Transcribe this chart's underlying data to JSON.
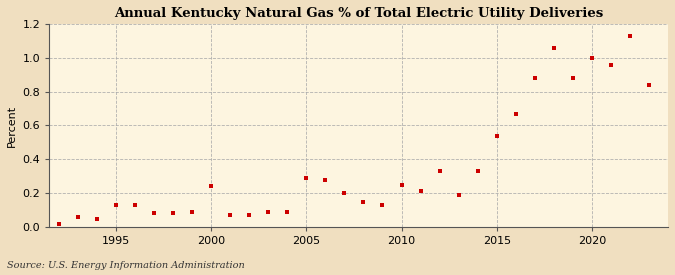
{
  "title": "Annual Kentucky Natural Gas % of Total Electric Utility Deliveries",
  "ylabel": "Percent",
  "source": "Source: U.S. Energy Information Administration",
  "background_color": "#f5e6c8",
  "plot_bg_color": "#fdf5e0",
  "marker_color": "#cc0000",
  "xlim": [
    1991.5,
    2024
  ],
  "ylim": [
    0.0,
    1.2
  ],
  "yticks": [
    0.0,
    0.2,
    0.4,
    0.6,
    0.8,
    1.0,
    1.2
  ],
  "xticks": [
    1995,
    2000,
    2005,
    2010,
    2015,
    2020
  ],
  "years": [
    1992,
    1993,
    1994,
    1995,
    1996,
    1997,
    1998,
    1999,
    2000,
    2001,
    2002,
    2003,
    2004,
    2005,
    2006,
    2007,
    2008,
    2009,
    2010,
    2011,
    2012,
    2013,
    2014,
    2015,
    2016,
    2017,
    2018,
    2019,
    2020,
    2021,
    2022,
    2023
  ],
  "values": [
    0.02,
    0.06,
    0.05,
    0.13,
    0.13,
    0.08,
    0.08,
    0.09,
    0.24,
    0.07,
    0.07,
    0.09,
    0.09,
    0.29,
    0.28,
    0.2,
    0.15,
    0.13,
    0.25,
    0.21,
    0.33,
    0.19,
    0.33,
    0.54,
    0.67,
    0.88,
    1.06,
    0.88,
    1.0,
    0.96,
    1.13,
    0.84
  ]
}
